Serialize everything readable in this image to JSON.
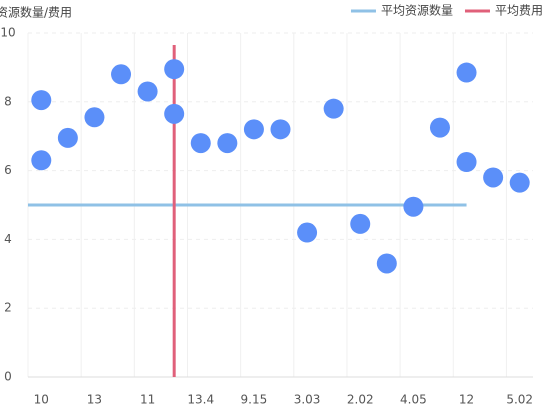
{
  "chart_data": {
    "type": "scatter",
    "y_label": "资源数量/费用",
    "categories": [
      "10",
      null,
      "13",
      null,
      "11",
      null,
      "13.4",
      null,
      "9.15",
      null,
      "3.03",
      null,
      "2.02",
      null,
      "4.05",
      null,
      "12",
      null,
      "5.02"
    ],
    "ylim": [
      0,
      10
    ],
    "yticks": [
      0,
      2,
      4,
      6,
      8,
      10
    ],
    "grid": true,
    "series": [
      {
        "name": null,
        "color": "#5b8ff9",
        "x": [
          0,
          0,
          1,
          2,
          3,
          4,
          5,
          5,
          6,
          7,
          8,
          9,
          10,
          11,
          12,
          13,
          14,
          15,
          16,
          16,
          17,
          18
        ],
        "values": [
          8.05,
          6.3,
          6.95,
          7.55,
          8.8,
          8.3,
          8.95,
          7.65,
          6.8,
          6.8,
          7.2,
          7.2,
          4.2,
          7.8,
          4.45,
          3.3,
          4.95,
          7.25,
          8.85,
          6.25,
          5.8,
          5.65
        ]
      }
    ],
    "reference_lines": [
      {
        "name": "平均资源数量",
        "color": "#8fc1e6",
        "orientation": "horizontal",
        "value": 5,
        "from": 0,
        "to": 16
      },
      {
        "name": "平均费用",
        "color": "#e0607a",
        "orientation": "vertical",
        "value": 5,
        "from": 0,
        "to": 9.65
      }
    ],
    "legend": "top-right"
  }
}
